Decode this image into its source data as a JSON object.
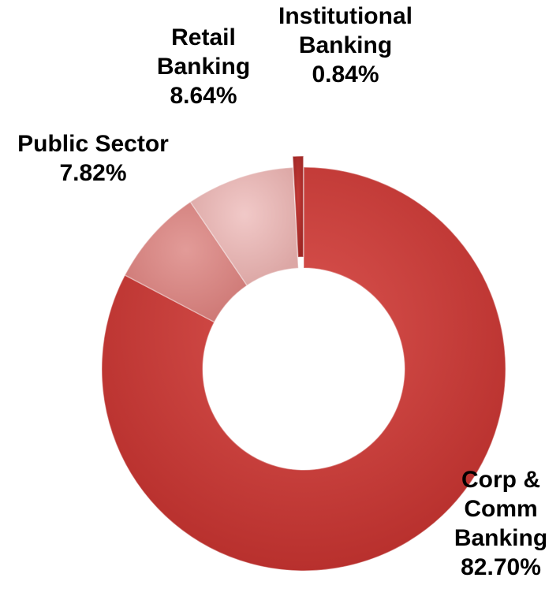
{
  "chart_data": {
    "type": "pie",
    "variant": "donut",
    "exploded_slice": "Institutional Banking",
    "categories": [
      "Corp & Comm Banking",
      "Public Sector",
      "Retail Banking",
      "Institutional Banking"
    ],
    "values": [
      82.7,
      7.82,
      8.64,
      0.84
    ],
    "labels": [
      {
        "lines": [
          "Corp &",
          "Comm",
          "Banking",
          "82.70%"
        ]
      },
      {
        "lines": [
          "Public Sector",
          "7.82%"
        ]
      },
      {
        "lines": [
          "Retail",
          "Banking",
          "8.64%"
        ]
      },
      {
        "lines": [
          "Institutional",
          "Banking",
          "0.84%"
        ]
      }
    ],
    "colors": [
      "#c8413c",
      "#d98b88",
      "#e8b7b5",
      "#b22e2c"
    ],
    "legend": "none"
  }
}
